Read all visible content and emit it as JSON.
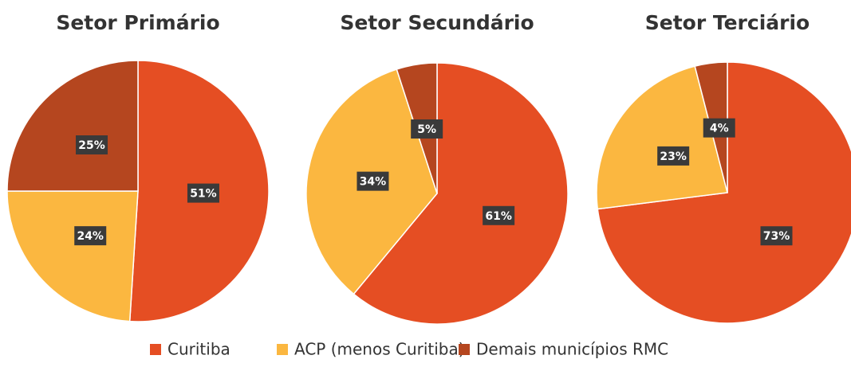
{
  "chart_data": [
    {
      "type": "pie",
      "title": "Setor Primário",
      "categories": [
        "Curitiba",
        "ACP (menos Curitiba)",
        "Demais municípios RMC"
      ],
      "values": [
        51,
        24,
        25
      ],
      "value_labels": [
        "51%",
        "24%",
        "25%"
      ],
      "colors": [
        "#e54e23",
        "#fbb740",
        "#b5461f"
      ]
    },
    {
      "type": "pie",
      "title": "Setor Secundário",
      "categories": [
        "Curitiba",
        "ACP (menos Curitiba)",
        "Demais municípios RMC"
      ],
      "values": [
        61,
        34,
        5
      ],
      "value_labels": [
        "61%",
        "34%",
        "5%"
      ],
      "colors": [
        "#e54e23",
        "#fbb740",
        "#b5461f"
      ]
    },
    {
      "type": "pie",
      "title": "Setor Terciário",
      "categories": [
        "Curitiba",
        "ACP (menos Curitiba)",
        "Demais municípios RMC"
      ],
      "values": [
        73,
        23,
        4
      ],
      "value_labels": [
        "73%",
        "23%",
        "4%"
      ],
      "colors": [
        "#e54e23",
        "#fbb740",
        "#b5461f"
      ]
    }
  ]
}
